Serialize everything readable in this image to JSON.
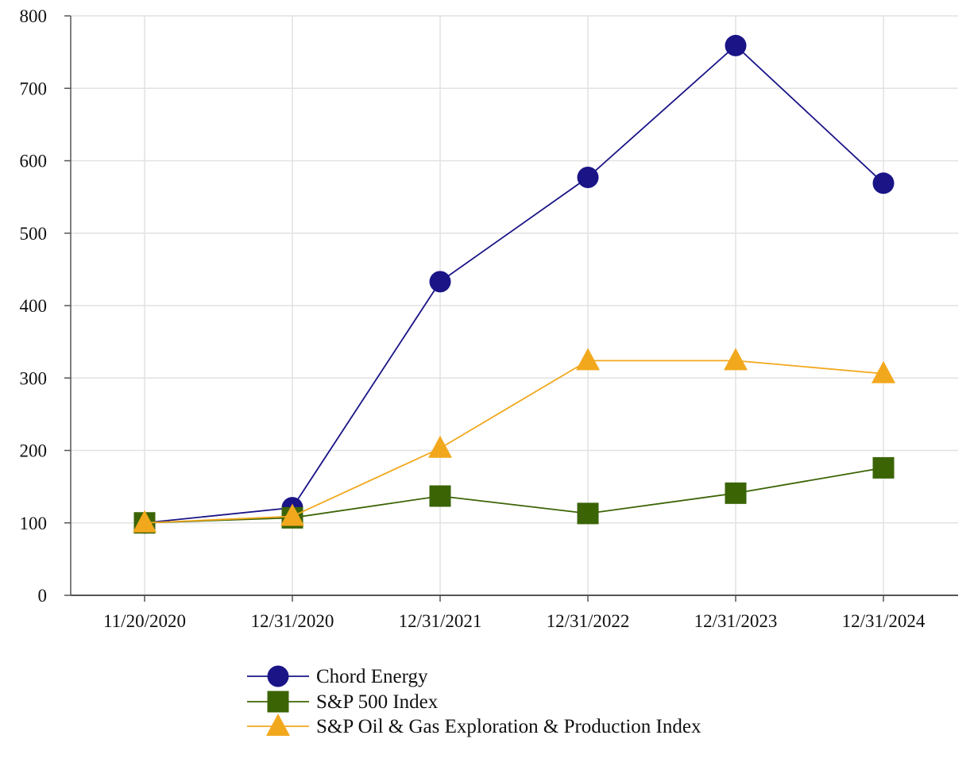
{
  "chart_data": {
    "type": "line",
    "title": "",
    "xlabel": "",
    "ylabel": "",
    "categories": [
      "11/20/2020",
      "12/31/2020",
      "12/31/2021",
      "12/31/2022",
      "12/31/2023",
      "12/31/2024"
    ],
    "ylim": [
      0,
      800
    ],
    "yticks": [
      0,
      100,
      200,
      300,
      400,
      500,
      600,
      700,
      800
    ],
    "grid": true,
    "legend_position": "bottom",
    "series": [
      {
        "name": "Chord Energy",
        "marker": "circle",
        "color": "#1a1487",
        "values": [
          100,
          121,
          433,
          577,
          759,
          569
        ]
      },
      {
        "name": "S&P 500 Index",
        "marker": "square",
        "color": "#3b6405",
        "values": [
          100,
          107,
          137,
          113,
          141,
          176
        ]
      },
      {
        "name": "S&P Oil & Gas Exploration & Production Index",
        "marker": "triangle",
        "color": "#f2a81d",
        "values": [
          100,
          109,
          203,
          324,
          324,
          306
        ]
      }
    ]
  }
}
